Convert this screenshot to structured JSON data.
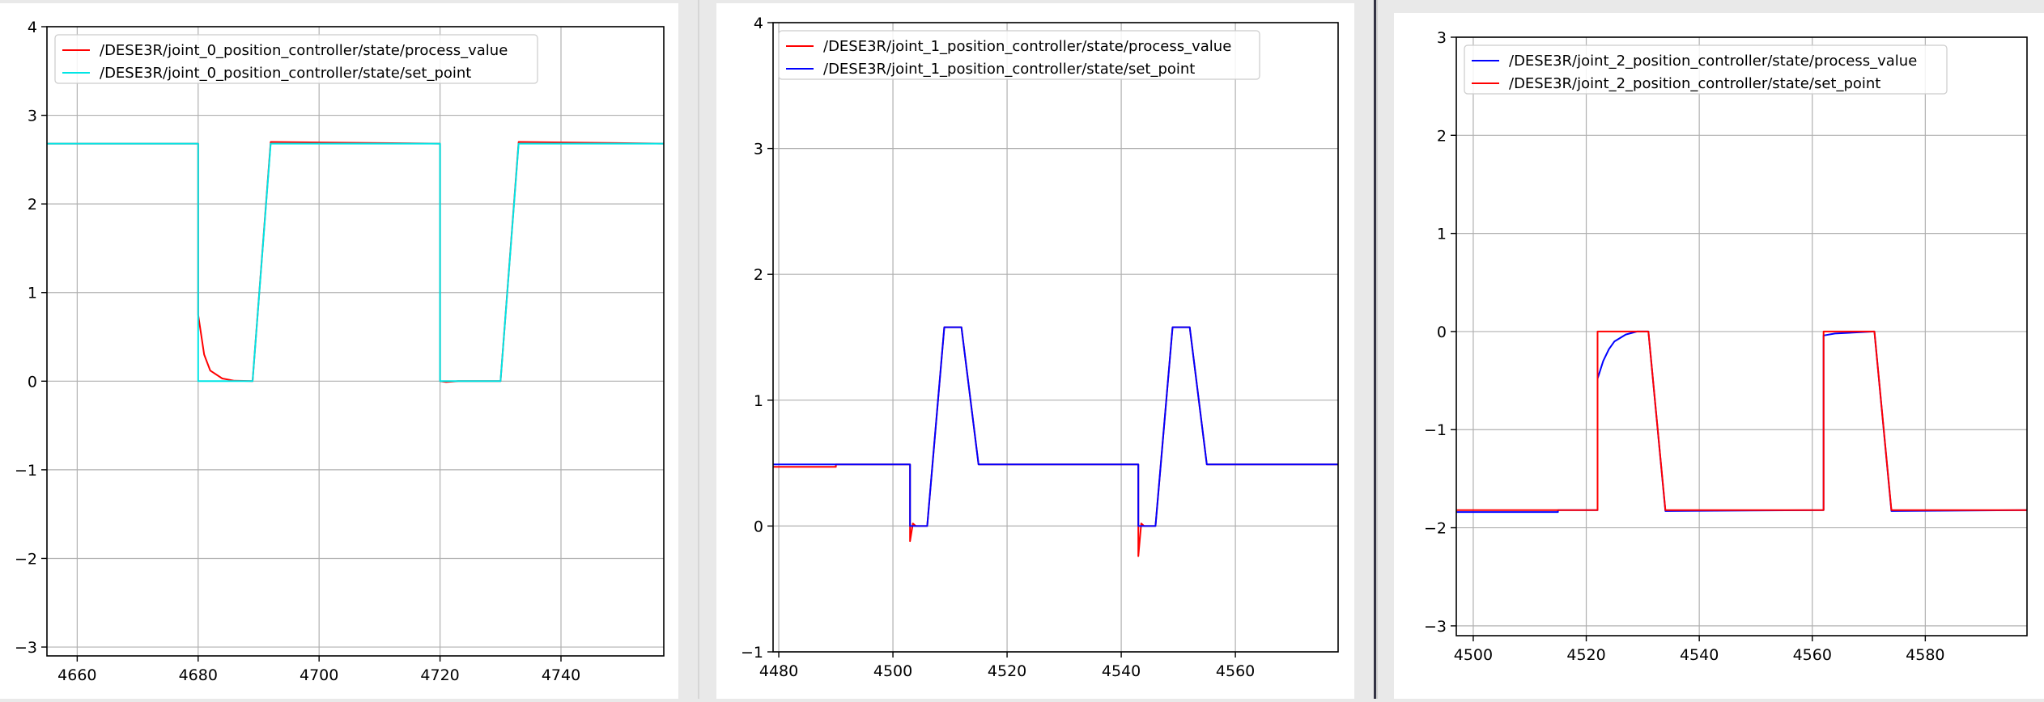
{
  "chart_data": [
    {
      "type": "line",
      "title": "",
      "xlabel": "",
      "ylabel": "",
      "xlim": [
        4655,
        4757
      ],
      "ylim": [
        -3.1,
        4
      ],
      "xticks": [
        4660,
        4680,
        4700,
        4720,
        4740
      ],
      "yticks": [
        -3,
        -2,
        -1,
        0,
        1,
        2,
        3,
        4
      ],
      "grid": true,
      "legend_position": "top-left",
      "series": [
        {
          "name": "/DESE3R/joint_0_position_controller/state/process_value",
          "color": "#ff0000",
          "points": [
            [
              4655,
              2.68
            ],
            [
              4680,
              2.68
            ],
            [
              4680,
              0.75
            ],
            [
              4681,
              0.3
            ],
            [
              4682,
              0.12
            ],
            [
              4684,
              0.03
            ],
            [
              4686,
              0.005
            ],
            [
              4689,
              0
            ],
            [
              4692,
              2.7
            ],
            [
              4720,
              2.68
            ],
            [
              4720,
              0
            ],
            [
              4721,
              -0.01
            ],
            [
              4723,
              0
            ],
            [
              4730,
              0
            ],
            [
              4733,
              2.7
            ],
            [
              4757,
              2.68
            ]
          ]
        },
        {
          "name": "/DESE3R/joint_0_position_controller/state/set_point",
          "color": "#00e5e5",
          "points": [
            [
              4655,
              2.68
            ],
            [
              4680,
              2.68
            ],
            [
              4680,
              0
            ],
            [
              4689,
              0
            ],
            [
              4692,
              2.68
            ],
            [
              4720,
              2.68
            ],
            [
              4720,
              0
            ],
            [
              4730,
              0
            ],
            [
              4733,
              2.68
            ],
            [
              4757,
              2.68
            ]
          ]
        }
      ]
    },
    {
      "type": "line",
      "title": "",
      "xlabel": "",
      "ylabel": "",
      "xlim": [
        4479,
        4578
      ],
      "ylim": [
        -1,
        4
      ],
      "xticks": [
        4480,
        4500,
        4520,
        4540,
        4560
      ],
      "yticks": [
        -1,
        0,
        1,
        2,
        3,
        4
      ],
      "grid": true,
      "legend_position": "top-left",
      "series": [
        {
          "name": "/DESE3R/joint_1_position_controller/state/process_value",
          "color": "#ff0000",
          "points": [
            [
              4479,
              0.47
            ],
            [
              4490,
              0.47
            ],
            [
              4490,
              0.49
            ],
            [
              4503,
              0.49
            ],
            [
              4503,
              -0.12
            ],
            [
              4503.5,
              0.02
            ],
            [
              4504,
              0
            ],
            [
              4506,
              0
            ],
            [
              4509,
              1.58
            ],
            [
              4512,
              1.58
            ],
            [
              4515,
              0.49
            ],
            [
              4543,
              0.49
            ],
            [
              4543,
              -0.24
            ],
            [
              4543.5,
              0.02
            ],
            [
              4544,
              0
            ],
            [
              4546,
              0
            ],
            [
              4549,
              1.58
            ],
            [
              4552,
              1.58
            ],
            [
              4555,
              0.49
            ],
            [
              4578,
              0.49
            ]
          ]
        },
        {
          "name": "/DESE3R/joint_1_position_controller/state/set_point",
          "color": "#0000ff",
          "points": [
            [
              4479,
              0.49
            ],
            [
              4503,
              0.49
            ],
            [
              4503,
              0
            ],
            [
              4506,
              0
            ],
            [
              4509,
              1.58
            ],
            [
              4512,
              1.58
            ],
            [
              4515,
              0.49
            ],
            [
              4543,
              0.49
            ],
            [
              4543,
              0
            ],
            [
              4546,
              0
            ],
            [
              4549,
              1.58
            ],
            [
              4552,
              1.58
            ],
            [
              4555,
              0.49
            ],
            [
              4578,
              0.49
            ]
          ]
        }
      ]
    },
    {
      "type": "line",
      "title": "",
      "xlabel": "",
      "ylabel": "",
      "xlim": [
        4497,
        4598
      ],
      "ylim": [
        -3.1,
        3
      ],
      "xticks": [
        4500,
        4520,
        4540,
        4560,
        4580
      ],
      "yticks": [
        -3,
        -2,
        -1,
        0,
        1,
        2,
        3
      ],
      "grid": true,
      "legend_position": "top-left",
      "series": [
        {
          "name": "/DESE3R/joint_2_position_controller/state/process_value",
          "color": "#0000ff",
          "points": [
            [
              4497,
              -1.84
            ],
            [
              4515,
              -1.84
            ],
            [
              4515,
              -1.82
            ],
            [
              4522,
              -1.82
            ],
            [
              4522,
              -0.48
            ],
            [
              4523,
              -0.3
            ],
            [
              4524,
              -0.18
            ],
            [
              4525,
              -0.1
            ],
            [
              4527,
              -0.03
            ],
            [
              4529,
              0
            ],
            [
              4531,
              0
            ],
            [
              4534,
              -1.83
            ],
            [
              4562,
              -1.82
            ],
            [
              4562,
              -0.04
            ],
            [
              4564,
              -0.02
            ],
            [
              4571,
              0
            ],
            [
              4574,
              -1.83
            ],
            [
              4598,
              -1.82
            ]
          ]
        },
        {
          "name": "/DESE3R/joint_2_position_controller/state/set_point",
          "color": "#ff0000",
          "points": [
            [
              4497,
              -1.82
            ],
            [
              4522,
              -1.82
            ],
            [
              4522,
              0
            ],
            [
              4531,
              0
            ],
            [
              4534,
              -1.82
            ],
            [
              4562,
              -1.82
            ],
            [
              4562,
              0
            ],
            [
              4571,
              0
            ],
            [
              4574,
              -1.82
            ],
            [
              4598,
              -1.82
            ]
          ]
        }
      ]
    }
  ]
}
